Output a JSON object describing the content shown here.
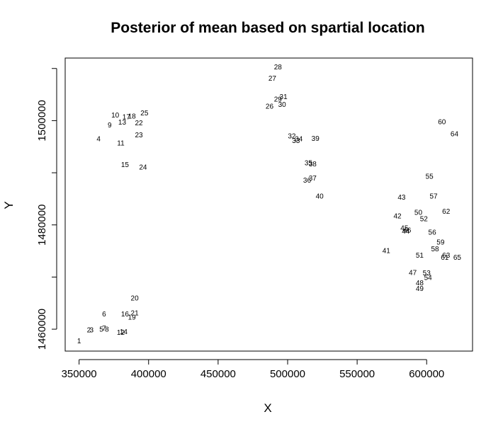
{
  "chart_data": {
    "type": "scatter",
    "title": "Posterior of mean based on spartial location",
    "xlabel": "X",
    "ylabel": "Y",
    "xlim": [
      340000,
      633000
    ],
    "ylim": [
      1455800,
      1512000
    ],
    "x_ticks": [
      350000,
      400000,
      450000,
      500000,
      550000,
      600000
    ],
    "x_tick_labels": [
      "350000",
      "400000",
      "450000",
      "500000",
      "550000",
      "600000"
    ],
    "y_ticks": [
      1460000,
      1480000,
      1500000
    ],
    "y_tick_labels": [
      "1460000",
      "1480000",
      "1500000"
    ],
    "grid": false,
    "marker": "text-label",
    "points": [
      {
        "label": "1",
        "x": 350000,
        "y": 1457800
      },
      {
        "label": "2",
        "x": 357000,
        "y": 1459900
      },
      {
        "label": "3",
        "x": 359000,
        "y": 1459900
      },
      {
        "label": "4",
        "x": 364000,
        "y": 1496500
      },
      {
        "label": "5",
        "x": 366000,
        "y": 1460000
      },
      {
        "label": "6",
        "x": 368000,
        "y": 1462900
      },
      {
        "label": "7",
        "x": 368000,
        "y": 1460200
      },
      {
        "label": "8",
        "x": 370000,
        "y": 1460000
      },
      {
        "label": "9",
        "x": 372000,
        "y": 1499200
      },
      {
        "label": "10",
        "x": 376000,
        "y": 1501100
      },
      {
        "label": "11",
        "x": 380000,
        "y": 1495700
      },
      {
        "label": "12",
        "x": 380000,
        "y": 1459400
      },
      {
        "label": "13",
        "x": 381000,
        "y": 1499700
      },
      {
        "label": "14",
        "x": 382000,
        "y": 1459500
      },
      {
        "label": "15",
        "x": 383000,
        "y": 1491600
      },
      {
        "label": "16",
        "x": 383000,
        "y": 1462900
      },
      {
        "label": "17",
        "x": 384000,
        "y": 1500700
      },
      {
        "label": "18",
        "x": 388000,
        "y": 1500900
      },
      {
        "label": "19",
        "x": 388000,
        "y": 1462300
      },
      {
        "label": "20",
        "x": 390000,
        "y": 1466000
      },
      {
        "label": "21",
        "x": 390000,
        "y": 1463100
      },
      {
        "label": "22",
        "x": 393000,
        "y": 1499600
      },
      {
        "label": "23",
        "x": 393000,
        "y": 1497300
      },
      {
        "label": "24",
        "x": 396000,
        "y": 1491100
      },
      {
        "label": "25",
        "x": 397000,
        "y": 1501500
      },
      {
        "label": "26",
        "x": 487000,
        "y": 1502800
      },
      {
        "label": "27",
        "x": 489000,
        "y": 1508100
      },
      {
        "label": "28",
        "x": 493000,
        "y": 1510300
      },
      {
        "label": "29",
        "x": 493000,
        "y": 1504100
      },
      {
        "label": "30",
        "x": 496000,
        "y": 1503100
      },
      {
        "label": "31",
        "x": 497000,
        "y": 1504600
      },
      {
        "label": "32",
        "x": 503000,
        "y": 1497100
      },
      {
        "label": "33",
        "x": 506000,
        "y": 1496200
      },
      {
        "label": "34",
        "x": 508000,
        "y": 1496500
      },
      {
        "label": "35",
        "x": 515000,
        "y": 1491900
      },
      {
        "label": "36",
        "x": 514000,
        "y": 1488600
      },
      {
        "label": "37",
        "x": 518000,
        "y": 1489000
      },
      {
        "label": "38",
        "x": 518000,
        "y": 1491700
      },
      {
        "label": "39",
        "x": 520000,
        "y": 1496600
      },
      {
        "label": "40",
        "x": 523000,
        "y": 1485500
      },
      {
        "label": "41",
        "x": 571000,
        "y": 1475100
      },
      {
        "label": "42",
        "x": 579000,
        "y": 1481700
      },
      {
        "label": "43",
        "x": 582000,
        "y": 1485300
      },
      {
        "label": "44",
        "x": 585000,
        "y": 1478800
      },
      {
        "label": "45",
        "x": 584000,
        "y": 1479400
      },
      {
        "label": "46",
        "x": 586000,
        "y": 1479000
      },
      {
        "label": "47",
        "x": 590000,
        "y": 1470900
      },
      {
        "label": "48",
        "x": 595000,
        "y": 1468900
      },
      {
        "label": "49",
        "x": 595000,
        "y": 1467800
      },
      {
        "label": "50",
        "x": 594000,
        "y": 1482400
      },
      {
        "label": "51",
        "x": 595000,
        "y": 1474200
      },
      {
        "label": "52",
        "x": 598000,
        "y": 1481200
      },
      {
        "label": "53",
        "x": 600000,
        "y": 1470800
      },
      {
        "label": "54",
        "x": 601000,
        "y": 1469900
      },
      {
        "label": "55",
        "x": 602000,
        "y": 1489300
      },
      {
        "label": "56",
        "x": 604000,
        "y": 1478600
      },
      {
        "label": "57",
        "x": 605000,
        "y": 1485500
      },
      {
        "label": "58",
        "x": 606000,
        "y": 1475400
      },
      {
        "label": "59",
        "x": 610000,
        "y": 1476700
      },
      {
        "label": "60",
        "x": 611000,
        "y": 1499800
      },
      {
        "label": "61",
        "x": 613000,
        "y": 1473800
      },
      {
        "label": "62",
        "x": 614000,
        "y": 1482600
      },
      {
        "label": "63",
        "x": 614000,
        "y": 1474200
      },
      {
        "label": "64",
        "x": 620000,
        "y": 1497500
      },
      {
        "label": "65",
        "x": 622000,
        "y": 1473800
      }
    ]
  }
}
